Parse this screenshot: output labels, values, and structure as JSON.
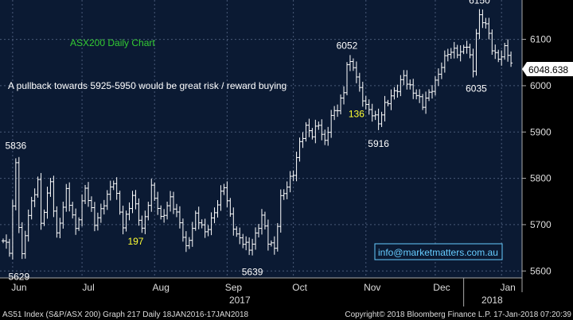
{
  "colors": {
    "background": "#000000",
    "plot_background": "#0b1a33",
    "grid": "#4a5a78",
    "price_line": "#ffffff",
    "title_green": "#33cc33",
    "note_yellow": "#ffff33",
    "email_cyan": "#66ccff",
    "footer_text": "#dddddd"
  },
  "chart_data": {
    "type": "line",
    "title": "ASX200 Daily Chart",
    "annotation": "A pullback towards 5925-5950 would be great risk / reward buying",
    "email": "info@marketmatters.com.au",
    "current_value": "6048.638",
    "ylim": [
      5585,
      6185
    ],
    "y_ticks": [
      {
        "label": "5600",
        "value": 5600
      },
      {
        "label": "5700",
        "value": 5700
      },
      {
        "label": "5800",
        "value": 5800
      },
      {
        "label": "5900",
        "value": 5900
      },
      {
        "label": "6000",
        "value": 6000
      },
      {
        "label": "6100",
        "value": 6100
      }
    ],
    "x_ticks": [
      {
        "label": "Jun",
        "day": 3
      },
      {
        "label": "Jul",
        "day": 25
      },
      {
        "label": "Aug",
        "day": 48
      },
      {
        "label": "Sep",
        "day": 71
      },
      {
        "label": "Oct",
        "day": 92
      },
      {
        "label": "Nov",
        "day": 115
      },
      {
        "label": "Dec",
        "day": 137
      },
      {
        "label": "Jan",
        "day": 158
      }
    ],
    "year_labels": [
      {
        "label": "2017",
        "day": 73
      },
      {
        "label": "2018",
        "day": 153
      }
    ],
    "year_divider_day": 146,
    "n_days": 164,
    "price_labels": [
      {
        "label": "5836",
        "day": 4,
        "value": 5836,
        "pos": "above"
      },
      {
        "label": "5629",
        "day": 5,
        "value": 5629,
        "pos": "below"
      },
      {
        "label": "5639",
        "day": 79,
        "value": 5639,
        "pos": "below"
      },
      {
        "label": "6052",
        "day": 109,
        "value": 6052,
        "pos": "above"
      },
      {
        "label": "5916",
        "day": 119,
        "value": 5916,
        "pos": "below"
      },
      {
        "label": "6035",
        "day": 150,
        "value": 6035,
        "pos": "below"
      },
      {
        "label": "6150",
        "day": 151,
        "value": 6150,
        "pos": "above"
      }
    ],
    "count_labels": [
      {
        "label": "197",
        "day": 42,
        "value": 5650
      },
      {
        "label": "136",
        "day": 112,
        "value": 5925
      }
    ],
    "anchors": [
      [
        0,
        5665
      ],
      [
        2,
        5645
      ],
      [
        4,
        5836
      ],
      [
        5,
        5700
      ],
      [
        6,
        5629
      ],
      [
        8,
        5720
      ],
      [
        11,
        5800
      ],
      [
        12,
        5700
      ],
      [
        15,
        5790
      ],
      [
        17,
        5680
      ],
      [
        20,
        5770
      ],
      [
        23,
        5690
      ],
      [
        26,
        5780
      ],
      [
        29,
        5700
      ],
      [
        32,
        5750
      ],
      [
        35,
        5790
      ],
      [
        38,
        5700
      ],
      [
        41,
        5760
      ],
      [
        44,
        5690
      ],
      [
        47,
        5780
      ],
      [
        50,
        5710
      ],
      [
        53,
        5760
      ],
      [
        56,
        5700
      ],
      [
        58,
        5650
      ],
      [
        61,
        5720
      ],
      [
        64,
        5680
      ],
      [
        67,
        5730
      ],
      [
        70,
        5780
      ],
      [
        72,
        5720
      ],
      [
        74,
        5680
      ],
      [
        76,
        5660
      ],
      [
        78,
        5645
      ],
      [
        80,
        5680
      ],
      [
        82,
        5720
      ],
      [
        84,
        5660
      ],
      [
        86,
        5650
      ],
      [
        88,
        5760
      ],
      [
        90,
        5780
      ],
      [
        92,
        5810
      ],
      [
        94,
        5880
      ],
      [
        96,
        5910
      ],
      [
        98,
        5890
      ],
      [
        100,
        5920
      ],
      [
        102,
        5880
      ],
      [
        104,
        5930
      ],
      [
        106,
        5950
      ],
      [
        108,
        5990
      ],
      [
        109,
        6052
      ],
      [
        111,
        6040
      ],
      [
        113,
        5990
      ],
      [
        115,
        5960
      ],
      [
        117,
        5940
      ],
      [
        119,
        5916
      ],
      [
        121,
        5960
      ],
      [
        123,
        5980
      ],
      [
        125,
        5990
      ],
      [
        127,
        6020
      ],
      [
        129,
        6000
      ],
      [
        131,
        5980
      ],
      [
        133,
        5955
      ],
      [
        135,
        5985
      ],
      [
        137,
        6010
      ],
      [
        139,
        6040
      ],
      [
        141,
        6070
      ],
      [
        143,
        6080
      ],
      [
        145,
        6070
      ],
      [
        147,
        6085
      ],
      [
        149,
        6035
      ],
      [
        150,
        6120
      ],
      [
        151,
        6150
      ],
      [
        153,
        6130
      ],
      [
        155,
        6080
      ],
      [
        157,
        6060
      ],
      [
        159,
        6080
      ],
      [
        161,
        6049
      ]
    ]
  },
  "footer": {
    "left": "AS51 Index (S&P/ASX 200) Graph 217  Daily 18JAN2016-17JAN2018",
    "right": "Copyright© 2018 Bloomberg Finance L.P.     17-Jan-2018 07:20:39"
  }
}
